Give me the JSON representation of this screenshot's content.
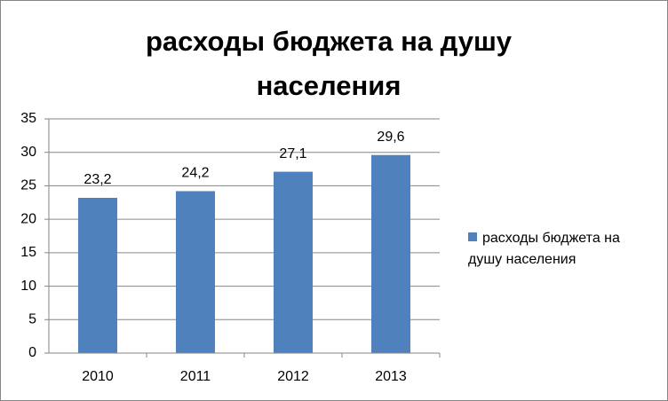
{
  "chart_data": {
    "type": "bar",
    "title": "расходы бюджета на душу населения",
    "categories": [
      "2010",
      "2011",
      "2012",
      "2013"
    ],
    "series": [
      {
        "name": "расходы бюджета на душу населения",
        "color": "#4f81bd",
        "values": [
          23.2,
          24.2,
          27.1,
          29.6
        ],
        "value_labels": [
          "23,2",
          "24,2",
          "27,1",
          "29,6"
        ]
      }
    ],
    "ylim": [
      0,
      35
    ],
    "yticks": [
      0,
      5,
      10,
      15,
      20,
      25,
      30,
      35
    ],
    "grid": true,
    "legend": "right"
  }
}
